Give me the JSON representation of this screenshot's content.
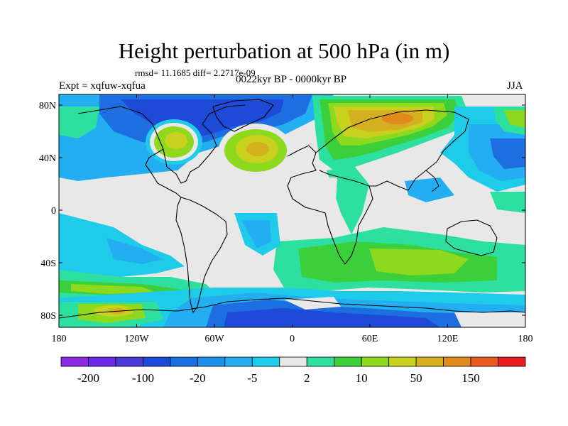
{
  "title": "Height perturbation at 500 hPa (in m)",
  "rmsd_text": "rmsd= 11.1685 diff= 2.2717e-09",
  "period": "0022kyr BP - 0000kyr BP",
  "experiment": "Expt = xqfuw-xqfua",
  "season": "JJA",
  "axes": {
    "y_ticks": [
      "80N",
      "40N",
      "0",
      "40S",
      "80S"
    ],
    "x_ticks": [
      "180",
      "120W",
      "60W",
      "0",
      "60E",
      "120E",
      "180"
    ]
  },
  "colorbar": {
    "colors": [
      "#8a2be2",
      "#6a2be8",
      "#4a3bd9",
      "#1e4ad8",
      "#1d6ee0",
      "#1a8fe8",
      "#22aef0",
      "#1ecbe8",
      "#e8e8e8",
      "#2ee0a0",
      "#3ccf3c",
      "#8ed81e",
      "#c8d21e",
      "#d4b01e",
      "#e08a1e",
      "#e85a1e",
      "#e81e1e"
    ],
    "labels": [
      "-200",
      "-100",
      "-20",
      "-5",
      "2",
      "10",
      "50",
      "150"
    ]
  },
  "palette": {
    "dblue": "#1e4ad8",
    "mblue": "#1d6ee0",
    "lblue": "#22aef0",
    "cyan": "#1ecbe8",
    "grey": "#e8e8e8",
    "mint": "#2ee0a0",
    "green": "#3ccf3c",
    "lgreen": "#8ed81e",
    "yellow": "#c8d21e",
    "orange": "#d4b01e",
    "dorange": "#e08a1e"
  }
}
